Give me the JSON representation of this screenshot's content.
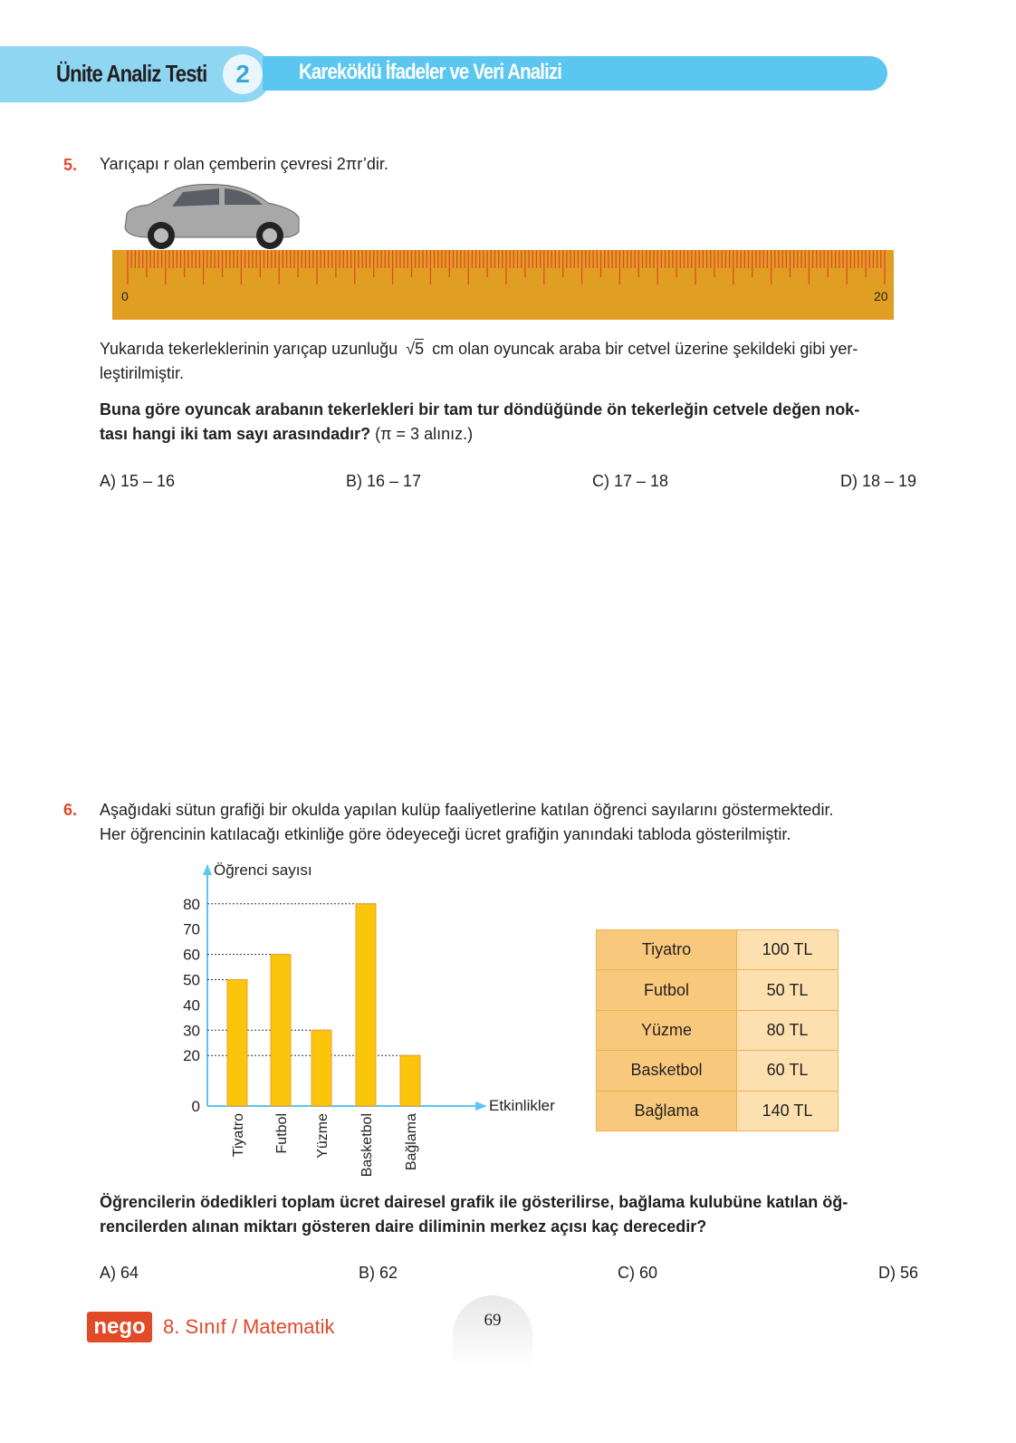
{
  "header": {
    "title": "Ünite Analiz Testi",
    "test_number": "2",
    "subtitle": "Kareköklü İfadeler ve Veri Analizi"
  },
  "q5": {
    "number": "5.",
    "intro": "Yarıçapı r olan çemberin çevresi 2πr’dir.",
    "ruler": {
      "start_label": "0",
      "end_label": "20"
    },
    "body_1": "Yukarıda tekerleklerinin yarıçap uzunluğu",
    "sqrt_value": "5",
    "body_2": "cm olan oyuncak araba bir cetvel üzerine şekildeki gibi yer-",
    "body_3": "leştirilmiştir.",
    "question_bold": "Buna göre oyuncak arabanın tekerlekleri bir tam tur döndüğünde ön tekerleğin cetvele değen nok-",
    "question_bold_2": "tası hangi iki tam sayı arasındadır?",
    "question_note": "(π = 3 alınız.)",
    "options": [
      "A) 15 – 16",
      "B) 16 – 17",
      "C) 17 – 18",
      "D) 18 – 19"
    ]
  },
  "q6": {
    "number": "6.",
    "intro_1": "Aşağıdaki sütun grafiği bir okulda yapılan kulüp faaliyetlerine katılan öğrenci sayılarını göstermektedir.",
    "intro_2": "Her öğrencinin katılacağı etkinliğe göre ödeyeceği ücret grafiğin yanındaki tabloda gösterilmiştir.",
    "fee_table": [
      [
        "Tiyatro",
        "100 TL"
      ],
      [
        "Futbol",
        "50 TL"
      ],
      [
        "Yüzme",
        "80 TL"
      ],
      [
        "Basketbol",
        "60 TL"
      ],
      [
        "Bağlama",
        "140 TL"
      ]
    ],
    "question_1": "Öğrencilerin ödedikleri toplam ücret dairesel grafik ile gösterilirse, bağlama kulubüne katılan öğ-",
    "question_2": "rencilerden alınan miktarı gösteren daire diliminin merkez açısı kaç derecedir?",
    "options": [
      "A) 64",
      "B) 62",
      "C) 60",
      "D) 56"
    ]
  },
  "chart_data": {
    "type": "bar",
    "categories": [
      "Tiyatro",
      "Futbol",
      "Yüzme",
      "Basketbol",
      "Bağlama"
    ],
    "values": [
      50,
      60,
      30,
      80,
      20
    ],
    "xlabel": "Etkinlikler",
    "ylabel": "Öğrenci sayısı",
    "yticks": [
      "0",
      "20",
      "30",
      "40",
      "50",
      "60",
      "70",
      "80"
    ],
    "ylim": [
      0,
      80
    ],
    "bar_color": "#fbc50c",
    "axis_color": "#5bc6f0"
  },
  "footer": {
    "logo": "nego",
    "course": "8. Sınıf / Matematik",
    "page": "69"
  }
}
